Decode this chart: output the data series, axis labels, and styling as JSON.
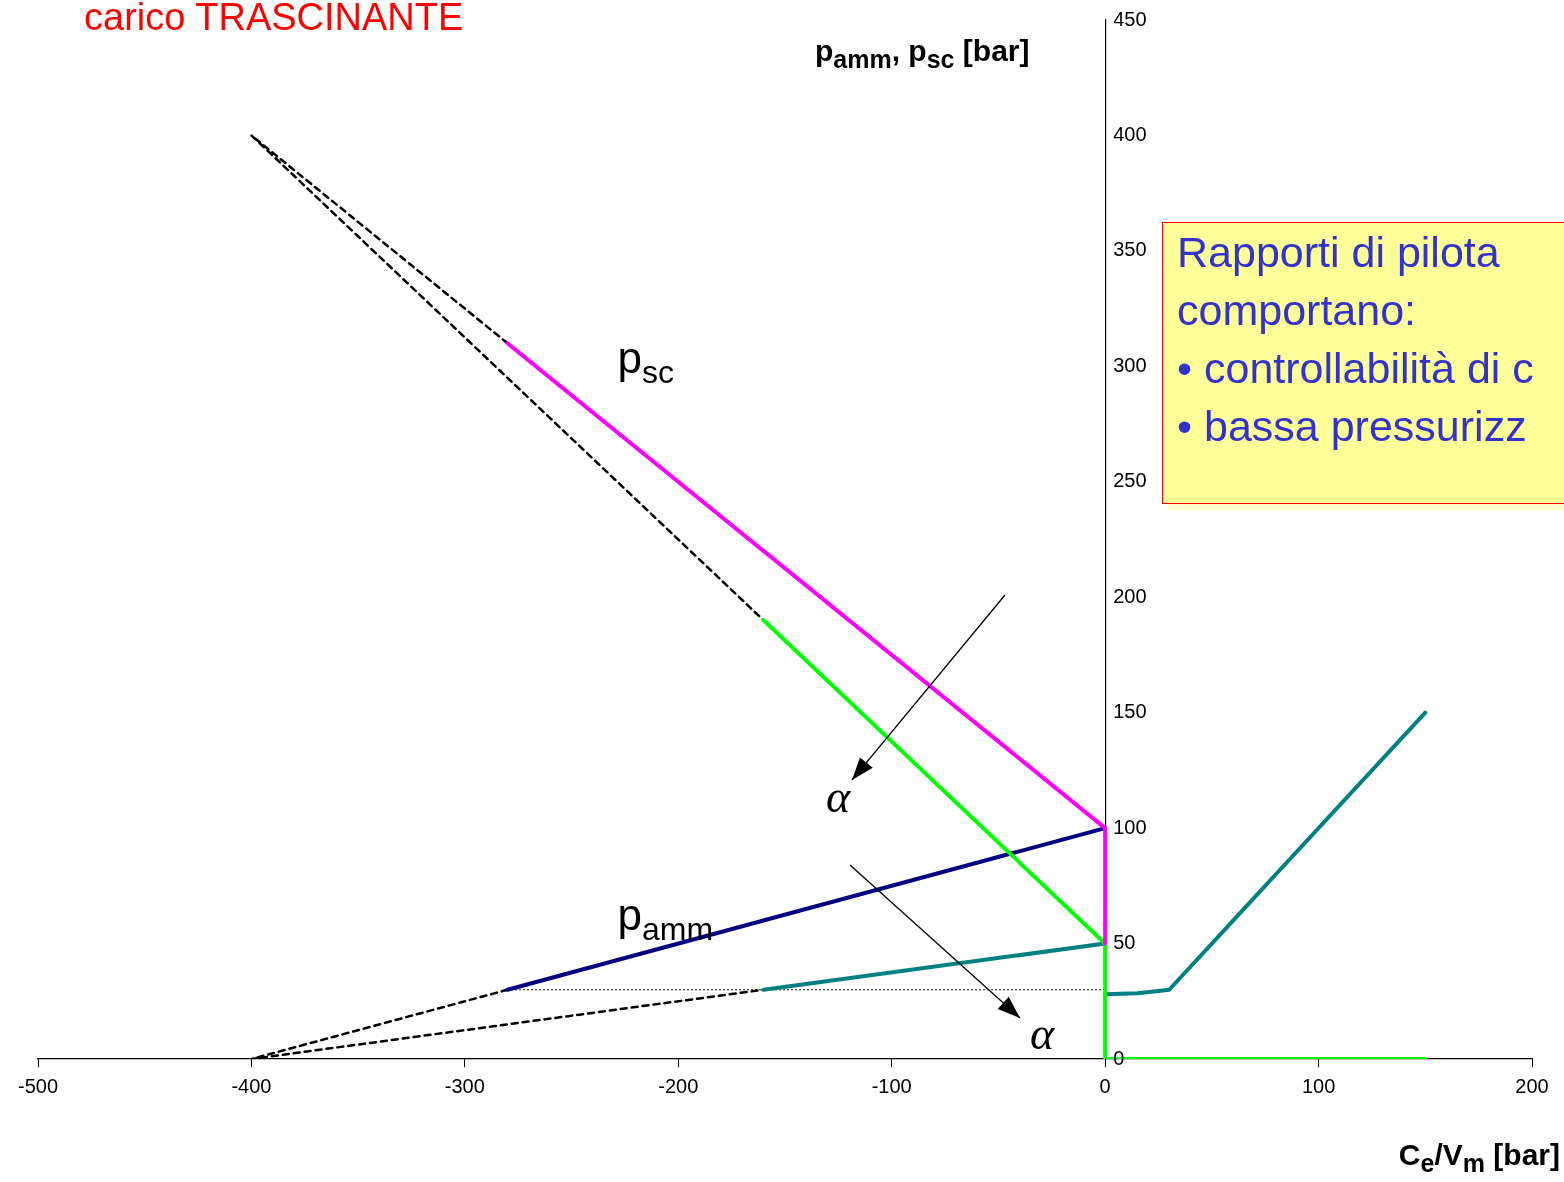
{
  "chart_data": {
    "type": "line",
    "title": "carico TRASCINANTE",
    "xlabel": "C$_{e}$/V$_{m}$ [bar]",
    "ylabel": "p$_{amm}$, p$_{sc}$ [bar]",
    "xlim": [
      -500,
      200
    ],
    "xticks": [
      -500,
      -400,
      -300,
      -200,
      -100,
      0,
      100,
      200
    ],
    "ylim": [
      0,
      450
    ],
    "yticks": [
      0,
      50,
      100,
      150,
      200,
      250,
      300,
      350,
      400,
      450
    ],
    "grid": false,
    "legend": false,
    "marker": "none",
    "annotations": [
      "Rapporti di pilota\ncomportano:\n• controllabilità di c\n• bassa pressurizz",
      "α",
      "α"
    ],
    "series": [
      {
        "name": "p$_{sc}$",
        "color": "#ff00ff",
        "x": [
          -280,
          0,
          0
        ],
        "values": [
          310,
          100,
          50
        ]
      },
      {
        "color": "#00ff00",
        "x": [
          -160,
          0,
          0,
          150
        ],
        "values": [
          190,
          50,
          0,
          0
        ]
      },
      {
        "name": "p$_{amm}$",
        "color": "#000080",
        "x": [
          -280,
          0
        ],
        "values": [
          30,
          100
        ]
      },
      {
        "color": "#008080",
        "x": [
          -160,
          0
        ],
        "values": [
          30,
          50
        ]
      },
      {
        "color": "#008080",
        "x": [
          0,
          15,
          25,
          30,
          50,
          150
        ],
        "values": [
          28,
          28.5,
          29.5,
          30,
          50,
          150
        ]
      },
      {
        "color": "#000000",
        "line_style": "dashed",
        "x": [
          -280,
          -400,
          -160
        ],
        "values": [
          310,
          400,
          190
        ]
      },
      {
        "color": "#000000",
        "line_style": "dashed",
        "x": [
          -280,
          -400,
          -160
        ],
        "values": [
          30,
          0,
          30
        ]
      },
      {
        "color": "#000000",
        "line_style": "dotted",
        "x": [
          -280,
          0
        ],
        "values": [
          30,
          30
        ]
      }
    ]
  }
}
